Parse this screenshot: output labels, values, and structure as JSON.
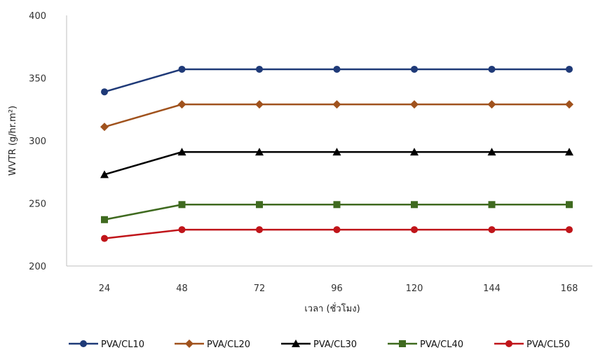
{
  "chart_data": {
    "type": "line",
    "title": "",
    "xlabel": "เวลา (ชั่วโมง)",
    "ylabel": "WVTR (g/hr.m²)",
    "x": [
      "24",
      "48",
      "72",
      "96",
      "120",
      "144",
      "168"
    ],
    "ylim": [
      200,
      400
    ],
    "yticks": [
      "200",
      "250",
      "300",
      "350",
      "400"
    ],
    "grid": false,
    "legend_position": "bottom",
    "series": [
      {
        "name": "PVA/CL10",
        "color": "#1f3a78",
        "marker": "circle",
        "values": [
          339,
          357,
          357,
          357,
          357,
          357,
          357
        ]
      },
      {
        "name": "PVA/CL20",
        "color": "#a0521d",
        "marker": "diamond",
        "values": [
          311,
          329,
          329,
          329,
          329,
          329,
          329
        ]
      },
      {
        "name": "PVA/CL30",
        "color": "#000000",
        "marker": "triangle",
        "values": [
          273,
          291,
          291,
          291,
          291,
          291,
          291
        ]
      },
      {
        "name": "PVA/CL40",
        "color": "#3f6a1f",
        "marker": "square",
        "values": [
          237,
          249,
          249,
          249,
          249,
          249,
          249
        ]
      },
      {
        "name": "PVA/CL50",
        "color": "#c0151a",
        "marker": "circle",
        "values": [
          222,
          229,
          229,
          229,
          229,
          229,
          229
        ]
      }
    ]
  }
}
